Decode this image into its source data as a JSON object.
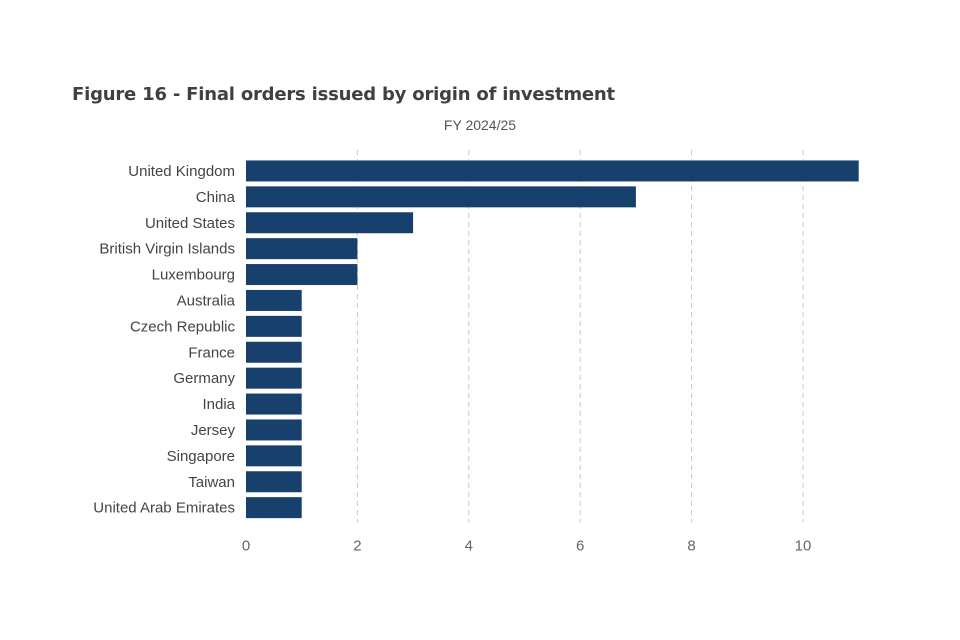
{
  "chart_data": {
    "type": "bar",
    "orientation": "horizontal",
    "title": "Figure 16 - Final orders issued by origin of investment",
    "subtitle": "FY 2024/25",
    "xlabel": "",
    "ylabel": "",
    "categories": [
      "United Kingdom",
      "China",
      "United States",
      "British Virgin Islands",
      "Luxembourg",
      "Australia",
      "Czech Republic",
      "France",
      "Germany",
      "India",
      "Jersey",
      "Singapore",
      "Taiwan",
      "United Arab Emirates"
    ],
    "values": [
      11,
      7,
      3,
      2,
      2,
      1,
      1,
      1,
      1,
      1,
      1,
      1,
      1,
      1
    ],
    "xlim": [
      0,
      11
    ],
    "xticks": [
      0,
      2,
      4,
      6,
      8,
      10
    ],
    "grid": "vertical dashed",
    "legend": "none",
    "bar_color": "#17406d",
    "grid_color": "#c8c8c8"
  }
}
